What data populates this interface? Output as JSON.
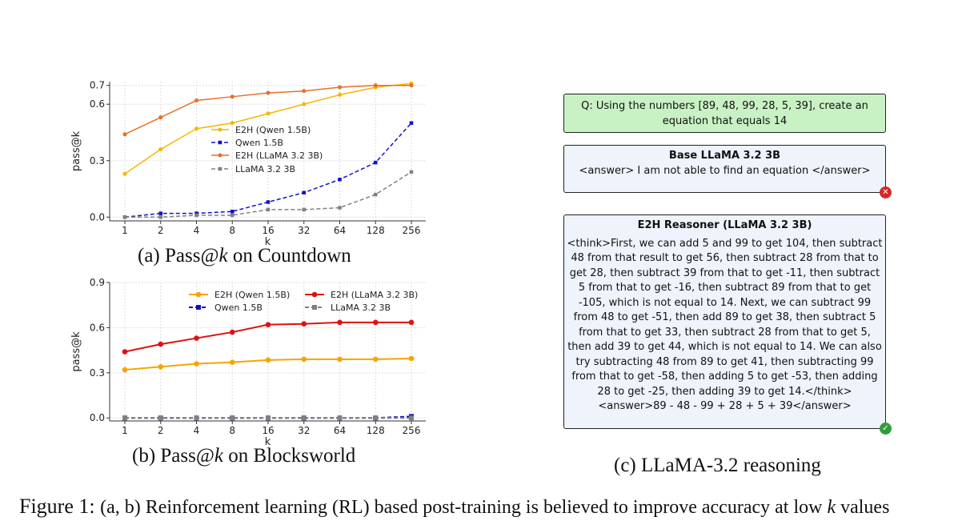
{
  "charts": {
    "a": {
      "chart_data": {
        "type": "line",
        "categories": [
          "1",
          "2",
          "4",
          "8",
          "16",
          "32",
          "64",
          "128",
          "256"
        ],
        "series": [
          {
            "name": "E2H (Qwen 1.5B)",
            "values": [
              0.23,
              0.36,
              0.47,
              0.5,
              0.55,
              0.6,
              0.65,
              0.69,
              0.71
            ],
            "color": "#f5b700",
            "dash": "solid"
          },
          {
            "name": "Qwen 1.5B",
            "values": [
              0.0,
              0.02,
              0.02,
              0.03,
              0.08,
              0.13,
              0.2,
              0.29,
              0.5
            ],
            "color": "#1111cc",
            "dash": "dashed"
          },
          {
            "name": "E2H (LLaMA 3.2 3B)",
            "values": [
              0.44,
              0.53,
              0.62,
              0.64,
              0.66,
              0.67,
              0.69,
              0.7,
              0.7
            ],
            "color": "#e8702a",
            "dash": "solid"
          },
          {
            "name": "LLaMA 3.2 3B",
            "values": [
              0.0,
              0.0,
              0.01,
              0.01,
              0.04,
              0.04,
              0.05,
              0.12,
              0.24
            ],
            "color": "#808080",
            "dash": "dashed"
          }
        ],
        "xlabel": "k",
        "ylabel": "pass@k",
        "yticks": [
          "0.0",
          "0.3",
          "0.6",
          "0.7"
        ],
        "ylim": [
          -0.02,
          0.72
        ],
        "grid": true,
        "legend": "center-right"
      }
    },
    "b": {
      "chart_data": {
        "type": "line",
        "categories": [
          "1",
          "2",
          "4",
          "8",
          "16",
          "32",
          "64",
          "128",
          "256"
        ],
        "series": [
          {
            "name": "E2H (Qwen 1.5B)",
            "values": [
              0.32,
              0.34,
              0.36,
              0.37,
              0.385,
              0.39,
              0.39,
              0.39,
              0.395
            ],
            "color": "#f5a500",
            "dash": "solid"
          },
          {
            "name": "E2H (LLaMA 3.2 3B)",
            "values": [
              0.44,
              0.49,
              0.53,
              0.57,
              0.62,
              0.625,
              0.635,
              0.635,
              0.635
            ],
            "color": "#e01010",
            "dash": "solid"
          },
          {
            "name": "Qwen 1.5B",
            "values": [
              0.0,
              0.0,
              0.0,
              0.0,
              0.0,
              0.0,
              0.0,
              0.0,
              0.01
            ],
            "color": "#1111cc",
            "dash": "dashed"
          },
          {
            "name": "LLaMA 3.2 3B",
            "values": [
              0.0,
              0.0,
              0.0,
              0.0,
              0.0,
              0.0,
              0.0,
              0.0,
              0.0
            ],
            "color": "#808080",
            "dash": "dashed"
          }
        ],
        "xlabel": "k",
        "ylabel": "pass@k",
        "yticks": [
          "0.0",
          "0.3",
          "0.6",
          "0.9"
        ],
        "ylim": [
          -0.02,
          0.9
        ],
        "grid": true,
        "legend": "top (2 columns)"
      }
    }
  },
  "captions": {
    "a_prefix": "(a) Pass@",
    "a_k": "k",
    "a_suffix": " on Countdown",
    "b_prefix": "(b) Pass@",
    "b_k": "k",
    "b_suffix": " on Blocksworld",
    "c": "(c) LLaMA-3.2 reasoning",
    "figure_lead": "Figure 1: ",
    "figure_text": "(a, b) Reinforcement learning (RL) based post-training is believed to improve accuracy at low ",
    "figure_k": "k",
    "figure_tail": " values"
  },
  "panel_c": {
    "question": "Q: Using the numbers [89, 48, 99, 28, 5, 39], create an equation that equals 14",
    "base_title": "Base LLaMA 3.2 3B",
    "base_answer": "<answer> I am not able to find an equation </answer>",
    "e2h_title": "E2H Reasoner (LLaMA 3.2 3B)",
    "e2h_answer": "<think>First, we can add 5 and 99 to get 104, then subtract 48 from that result to get 56, then subtract 28 from that to get 28, then subtract 39 from that to get -11, then subtract 5 from that to get -16, then subtract 89 from that to get -105, which is not equal to 14. Next, we can subtract 99 from 48 to get -51, then add 89 to get 38, then subtract 5 from that to get 33, then subtract 28 from that to get 5, then add 39 to get 44, which is not equal to 14. We can also try subtracting 48 from 89 to get 41, then subtracting 99 from that to get -58, then adding 5 to get -53, then adding 28 to get -25, then adding 39 to get 14.</think> <answer>89 - 48 - 99 + 28 + 5 + 39</answer>",
    "base_status_icon": "cross-circle",
    "e2h_status_icon": "check-circle",
    "fail_color": "#d62828",
    "ok_color": "#2e9e3a"
  }
}
